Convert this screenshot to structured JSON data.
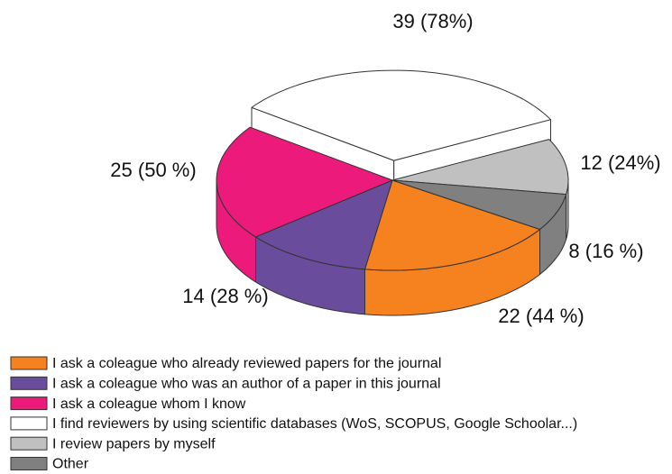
{
  "chart_data": {
    "type": "pie",
    "categories": [
      "I ask a coleague who already reviewed papers for the journal",
      "I ask a coleague who was an author of a paper in this journal",
      "I ask a coleague whom I know",
      "I find reviewers by using scientific databases (WoS, SCOPUS, Google Schoolar...)",
      "I review papers by myself",
      "Other"
    ],
    "values": [
      22,
      14,
      25,
      39,
      12,
      8
    ],
    "value_labels": [
      "22 (44 %)",
      "14 (28 %)",
      "25 (50 %)",
      "39 (78%)",
      "12 (24%)",
      "8 (16 %)"
    ],
    "colors": [
      "#f5821f",
      "#6a4c9c",
      "#ec1a7a",
      "#ffffff",
      "#c0c0c0",
      "#808080"
    ]
  }
}
